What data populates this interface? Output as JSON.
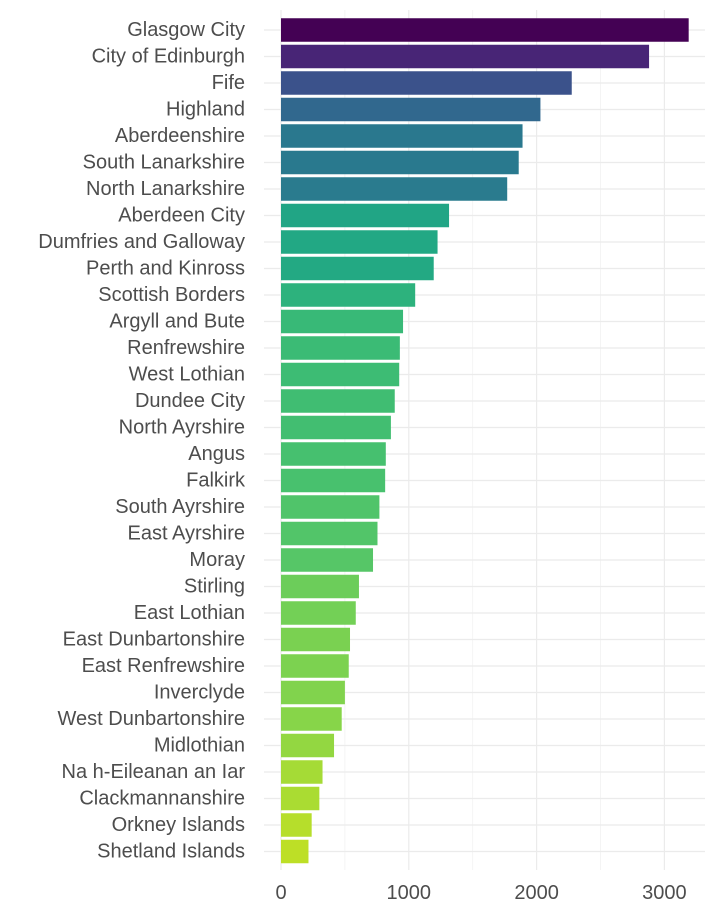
{
  "chart_data": {
    "type": "bar",
    "orientation": "horizontal",
    "title": "",
    "xlabel": "",
    "ylabel": "",
    "xlim": [
      0,
      3350
    ],
    "x_ticks": [
      0,
      1000,
      2000,
      3000
    ],
    "grid": true,
    "legend": "none",
    "categories": [
      "Glasgow City",
      "City of Edinburgh",
      "Fife",
      "Highland",
      "Aberdeenshire",
      "South Lanarkshire",
      "North Lanarkshire",
      "Aberdeen City",
      "Dumfries and Galloway",
      "Perth and Kinross",
      "Scottish Borders",
      "Argyll and Bute",
      "Renfrewshire",
      "West Lothian",
      "Dundee City",
      "North Ayrshire",
      "Angus",
      "Falkirk",
      "South Ayrshire",
      "East Ayrshire",
      "Moray",
      "Stirling",
      "East Lothian",
      "East Dunbartonshire",
      "East Renfrewshire",
      "Inverclyde",
      "West Dunbartonshire",
      "Midlothian",
      "Na h-Eileanan an Iar",
      "Clackmannanshire",
      "Orkney Islands",
      "Shetland Islands"
    ],
    "values": [
      3190,
      2880,
      2275,
      2030,
      1890,
      1860,
      1770,
      1315,
      1225,
      1195,
      1050,
      955,
      930,
      925,
      890,
      860,
      820,
      815,
      770,
      755,
      720,
      610,
      585,
      540,
      530,
      500,
      475,
      415,
      325,
      300,
      240,
      215
    ],
    "colors": [
      "#440154",
      "#482576",
      "#3b528b",
      "#31688e",
      "#2a788e",
      "#29798e",
      "#2a7b8e",
      "#21a585",
      "#22a884",
      "#23a983",
      "#2db27d",
      "#38b977",
      "#3bbb75",
      "#3dbc74",
      "#40bd72",
      "#42be71",
      "#46c06f",
      "#48c16e",
      "#50c46a",
      "#52c569",
      "#56c667",
      "#6ccd5a",
      "#73d056",
      "#7ad151",
      "#7cd250",
      "#81d34d",
      "#87d549",
      "#93d741",
      "#a5db36",
      "#aadc32",
      "#b6de2b",
      "#bddf26"
    ]
  }
}
